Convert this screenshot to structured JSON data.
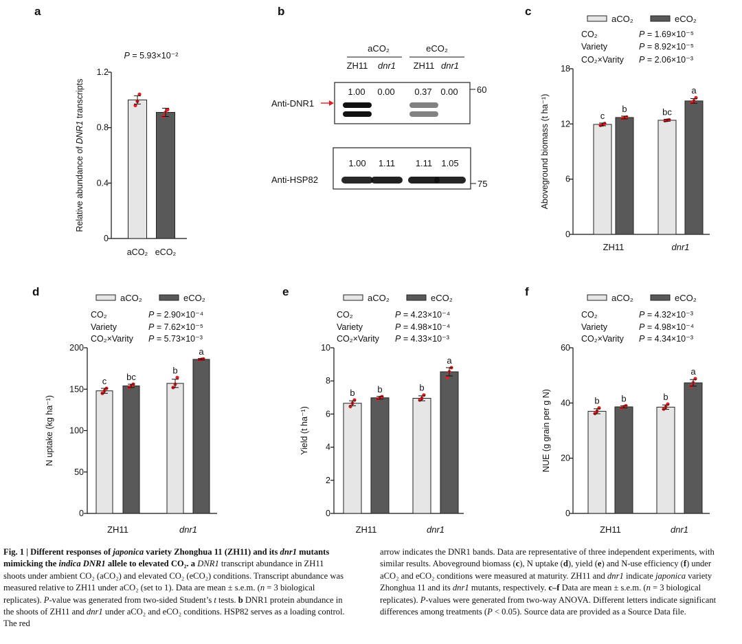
{
  "colors": {
    "bar_a": "#e6e6e6",
    "bar_e": "#595959",
    "stroke": "#222222",
    "dot": "#e02020",
    "arrow": "#e02020"
  },
  "chart_data": [
    {
      "panel": "a",
      "type": "bar",
      "categories": [
        "aCO₂",
        "eCO₂"
      ],
      "values": [
        1.0,
        0.91
      ],
      "errors": [
        0.03,
        0.03
      ],
      "points": [
        [
          0.96,
          0.99,
          1.04
        ],
        [
          0.88,
          0.91,
          0.93
        ]
      ],
      "ylim": [
        0,
        1.2
      ],
      "yticks": [
        "0",
        "0.4",
        "0.8",
        "1.2"
      ],
      "ytick_values": [
        0,
        0.4,
        0.8,
        1.2
      ],
      "ylabel_pre": "Relative abundance of ",
      "ylabel_it": "DNR1",
      "ylabel_post": " transcripts",
      "pvalue": "P = 5.93×10⁻²"
    },
    {
      "panel": "c",
      "type": "bar",
      "groups": [
        "ZH11",
        "dnr1"
      ],
      "series_names": [
        "aCO₂",
        "eCO₂"
      ],
      "values": [
        [
          11.95,
          12.7
        ],
        [
          12.4,
          14.5
        ]
      ],
      "errors": [
        [
          0.15,
          0.15
        ],
        [
          0.1,
          0.25
        ]
      ],
      "points": [
        [
          [
            11.85,
            11.9,
            12.05
          ],
          [
            12.6,
            12.65,
            12.75
          ]
        ],
        [
          [
            12.35,
            12.4,
            12.45
          ],
          [
            14.3,
            14.5,
            14.85
          ]
        ]
      ],
      "letters": [
        [
          "c",
          "b"
        ],
        [
          "bc",
          "a"
        ]
      ],
      "ylim": [
        0,
        18
      ],
      "yticks": [
        "0",
        "6",
        "12",
        "18"
      ],
      "ytick_values": [
        0,
        6,
        12,
        18
      ],
      "ylabel": "Aboveground biomass (t ha⁻¹)",
      "stats": [
        [
          "CO₂",
          "P = 1.69×10⁻⁵"
        ],
        [
          "Variety",
          "P = 8.92×10⁻⁵"
        ],
        [
          "CO₂×Varity",
          "P = 2.06×10⁻³"
        ]
      ]
    },
    {
      "panel": "d",
      "type": "bar",
      "groups": [
        "ZH11",
        "dnr1"
      ],
      "series_names": [
        "aCO₂",
        "eCO₂"
      ],
      "values": [
        [
          148,
          154
        ],
        [
          157,
          186
        ]
      ],
      "errors": [
        [
          3,
          2
        ],
        [
          5,
          0.8
        ]
      ],
      "points": [
        [
          [
            145,
            148,
            151
          ],
          [
            152,
            154,
            156
          ]
        ],
        [
          [
            152,
            156,
            164
          ],
          [
            185.5,
            186,
            186.5
          ]
        ]
      ],
      "letters": [
        [
          "c",
          "bc"
        ],
        [
          "b",
          "a"
        ]
      ],
      "ylim": [
        0,
        200
      ],
      "yticks": [
        "0",
        "50",
        "100",
        "150",
        "200"
      ],
      "ytick_values": [
        0,
        50,
        100,
        150,
        200
      ],
      "ylabel": "N uptake (kg ha⁻¹)",
      "stats": [
        [
          "CO₂",
          "P = 2.90×10⁻⁴"
        ],
        [
          "Variety",
          "P = 7.62×10⁻⁵"
        ],
        [
          "CO₂×Varity",
          "P = 5.73×10⁻³"
        ]
      ]
    },
    {
      "panel": "e",
      "type": "bar",
      "groups": [
        "ZH11",
        "dnr1"
      ],
      "series_names": [
        "aCO₂",
        "eCO₂"
      ],
      "values": [
        [
          6.65,
          6.98
        ],
        [
          6.95,
          8.55
        ]
      ],
      "errors": [
        [
          0.15,
          0.08
        ],
        [
          0.15,
          0.25
        ]
      ],
      "points": [
        [
          [
            6.45,
            6.65,
            6.85
          ],
          [
            6.9,
            7.0,
            7.05
          ]
        ],
        [
          [
            6.85,
            6.95,
            7.15
          ],
          [
            8.2,
            8.55,
            8.8
          ]
        ]
      ],
      "letters": [
        [
          "b",
          "b"
        ],
        [
          "b",
          "a"
        ]
      ],
      "ylim": [
        0,
        10
      ],
      "yticks": [
        "0",
        "2",
        "4",
        "6",
        "8",
        "10"
      ],
      "ytick_values": [
        0,
        2,
        4,
        6,
        8,
        10
      ],
      "ylabel": "Yield (t ha⁻¹)",
      "stats": [
        [
          "CO₂",
          "P = 4.23×10⁻⁴"
        ],
        [
          "Variety",
          "P = 4.98×10⁻⁴"
        ],
        [
          "CO₂×Varity",
          "P = 4.33×10⁻³"
        ]
      ]
    },
    {
      "panel": "f",
      "type": "bar",
      "groups": [
        "ZH11",
        "dnr1"
      ],
      "series_names": [
        "aCO₂",
        "eCO₂"
      ],
      "values": [
        [
          37.0,
          38.6
        ],
        [
          38.5,
          47.3
        ]
      ],
      "errors": [
        [
          0.9,
          0.4
        ],
        [
          0.8,
          1.2
        ]
      ],
      "points": [
        [
          [
            36.2,
            37.0,
            38.2
          ],
          [
            38.2,
            38.6,
            39.0
          ]
        ],
        [
          [
            37.8,
            38.5,
            39.6
          ],
          [
            46.0,
            47.3,
            48.8
          ]
        ]
      ],
      "letters": [
        [
          "b",
          "b"
        ],
        [
          "b",
          "a"
        ]
      ],
      "ylim": [
        0,
        60
      ],
      "yticks": [
        "0",
        "20",
        "40",
        "60"
      ],
      "ytick_values": [
        0,
        20,
        40,
        60
      ],
      "ylabel": "NUE (g grain per g N)",
      "stats": [
        [
          "CO₂",
          "P = 4.32×10⁻³"
        ],
        [
          "Variety",
          "P = 4.98×10⁻⁴"
        ],
        [
          "CO₂×Varity",
          "P = 4.34×10⁻³"
        ]
      ]
    }
  ],
  "blot": {
    "headers": [
      "aCO₂",
      "eCO₂"
    ],
    "lane_labels": [
      "ZH11",
      "dnr1",
      "ZH11",
      "dnr1"
    ],
    "dnr1_label": "Anti-DNR1",
    "hsp_label": "Anti-HSP82",
    "dnr1_values": [
      "1.00",
      "0.00",
      "0.37",
      "0.00"
    ],
    "hsp_values": [
      "1.00",
      "1.11",
      "1.11",
      "1.05"
    ],
    "marker_dnr1": "60",
    "marker_hsp": "75",
    "dnr1_intensity": [
      1.0,
      0.0,
      0.37,
      0.0
    ],
    "hsp_intensity": [
      1.0,
      1.11,
      1.11,
      1.05
    ]
  },
  "labels": {
    "a": "a",
    "b": "b",
    "c": "c",
    "d": "d",
    "e": "e",
    "f": "f"
  },
  "caption": {
    "left": [
      {
        "t": "Fig. 1 | Different responses of ",
        "s": "b"
      },
      {
        "t": "japonica",
        "s": "bi"
      },
      {
        "t": " variety Zhonghua 11 (ZH11) and its ",
        "s": "b"
      },
      {
        "t": "dnr1",
        "s": "bi"
      },
      {
        "t": " mutants mimicking the ",
        "s": "b"
      },
      {
        "t": "indica DNR1",
        "s": "bi"
      },
      {
        "t": " allele to elevated CO₂. ",
        "s": "b"
      },
      {
        "t": "a",
        "s": "b"
      },
      {
        "t": " ",
        "s": ""
      },
      {
        "t": "DNR1",
        "s": "i"
      },
      {
        "t": " transcript abundance in ZH11 shoots under ambient CO₂ (aCO₂) and elevated CO₂ (eCO₂) conditions. Transcript abundance was measured relative to ZH11 under aCO₂ (set to 1). Data are mean ± s.e.m. (",
        "s": ""
      },
      {
        "t": "n",
        "s": "i"
      },
      {
        "t": " = 3 biological replicates). ",
        "s": ""
      },
      {
        "t": "P",
        "s": "i"
      },
      {
        "t": "-value was generated from two-sided Student’s ",
        "s": ""
      },
      {
        "t": "t",
        "s": "i"
      },
      {
        "t": " tests. ",
        "s": ""
      },
      {
        "t": "b",
        "s": "b"
      },
      {
        "t": " DNR1 protein abundance in the shoots of ZH11 and ",
        "s": ""
      },
      {
        "t": "dnr1",
        "s": "i"
      },
      {
        "t": " under aCO₂ and eCO₂ conditions. HSP82 serves as a loading control. The red",
        "s": ""
      }
    ],
    "right": [
      {
        "t": "arrow indicates the DNR1 bands. Data are representative of three independent experiments, with similar results. Aboveground biomass (",
        "s": ""
      },
      {
        "t": "c",
        "s": "b"
      },
      {
        "t": "), N uptake (",
        "s": ""
      },
      {
        "t": "d",
        "s": "b"
      },
      {
        "t": "), yield (",
        "s": ""
      },
      {
        "t": "e",
        "s": "b"
      },
      {
        "t": ") and N-use efficiency (",
        "s": ""
      },
      {
        "t": "f",
        "s": "b"
      },
      {
        "t": ") under aCO₂ and eCO₂ conditions were measured at maturity. ZH11 and ",
        "s": ""
      },
      {
        "t": "dnr1",
        "s": "i"
      },
      {
        "t": " indicate ",
        "s": ""
      },
      {
        "t": "japonica",
        "s": "i"
      },
      {
        "t": " variety Zhonghua 11 and its ",
        "s": ""
      },
      {
        "t": "dnr1",
        "s": "i"
      },
      {
        "t": " mutants, respectively. ",
        "s": ""
      },
      {
        "t": "c–f",
        "s": "b"
      },
      {
        "t": " Data are mean ± s.e.m. (",
        "s": ""
      },
      {
        "t": "n",
        "s": "i"
      },
      {
        "t": " = 3 biological replicates). ",
        "s": ""
      },
      {
        "t": "P",
        "s": "i"
      },
      {
        "t": "-values were generated from two-way ANOVA. Different letters indicate significant differences among treatments (",
        "s": ""
      },
      {
        "t": "P",
        "s": "i"
      },
      {
        "t": " < 0.05). Source data are provided as a Source Data file.",
        "s": ""
      }
    ]
  }
}
